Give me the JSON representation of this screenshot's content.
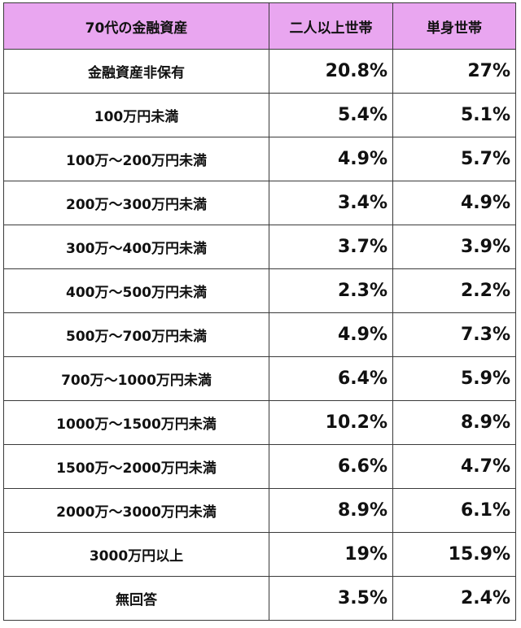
{
  "table": {
    "headers": [
      "70代の金融資産",
      "二人以上世帯",
      "単身世帯"
    ],
    "rows": [
      {
        "label": "金融資産非保有",
        "multi": "20.8%",
        "single": "27%"
      },
      {
        "label": "100万円未満",
        "multi": "5.4%",
        "single": "5.1%"
      },
      {
        "label": "100万～200万円未満",
        "multi": "4.9%",
        "single": "5.7%"
      },
      {
        "label": "200万～300万円未満",
        "multi": "3.4%",
        "single": "4.9%"
      },
      {
        "label": "300万～400万円未満",
        "multi": "3.7%",
        "single": "3.9%"
      },
      {
        "label": "400万～500万円未満",
        "multi": "2.3%",
        "single": "2.2%"
      },
      {
        "label": "500万～700万円未満",
        "multi": "4.9%",
        "single": "7.3%"
      },
      {
        "label": "700万～1000万円未満",
        "multi": "6.4%",
        "single": "5.9%"
      },
      {
        "label": "1000万～1500万円未満",
        "multi": "10.2%",
        "single": "8.9%"
      },
      {
        "label": "1500万～2000万円未満",
        "multi": "6.6%",
        "single": "4.7%"
      },
      {
        "label": "2000万～3000万円未満",
        "multi": "8.9%",
        "single": "6.1%"
      },
      {
        "label": "3000万円以上",
        "multi": "19%",
        "single": "15.9%"
      },
      {
        "label": "無回答",
        "multi": "3.5%",
        "single": "2.4%"
      }
    ]
  },
  "colors": {
    "header_background": "#e9a6f0",
    "border": "#3a3a3a",
    "text": "#111111"
  }
}
